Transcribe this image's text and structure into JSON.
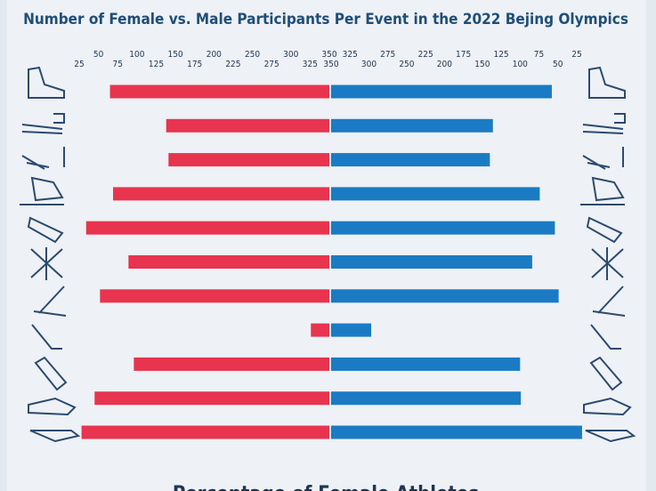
{
  "chart_data": {
    "type": "butterfly",
    "title": "Number of Female vs. Male Participants Per Event in the 2022 Bejing Olympics",
    "subtitle": "Percentage of Female Athletes",
    "xlim": [
      25,
      350
    ],
    "xticks": [
      25,
      50,
      75,
      100,
      125,
      150,
      175,
      200,
      225,
      250,
      275,
      300,
      325,
      350
    ],
    "x2lim": [
      350,
      25
    ],
    "x2ticks": [
      350,
      325,
      300,
      275,
      250,
      225,
      200,
      175,
      150,
      125,
      100,
      75,
      50,
      25
    ],
    "series": [
      {
        "color": "#e8344e",
        "axis": "x",
        "values": [
          65,
          138,
          141,
          69,
          34,
          89,
          52,
          326,
          96,
          45,
          28
        ]
      },
      {
        "color": "#1a7bc4",
        "axis": "x2",
        "values": [
          58,
          136,
          140,
          74,
          54,
          84,
          49,
          297,
          100,
          99,
          18
        ]
      }
    ]
  }
}
